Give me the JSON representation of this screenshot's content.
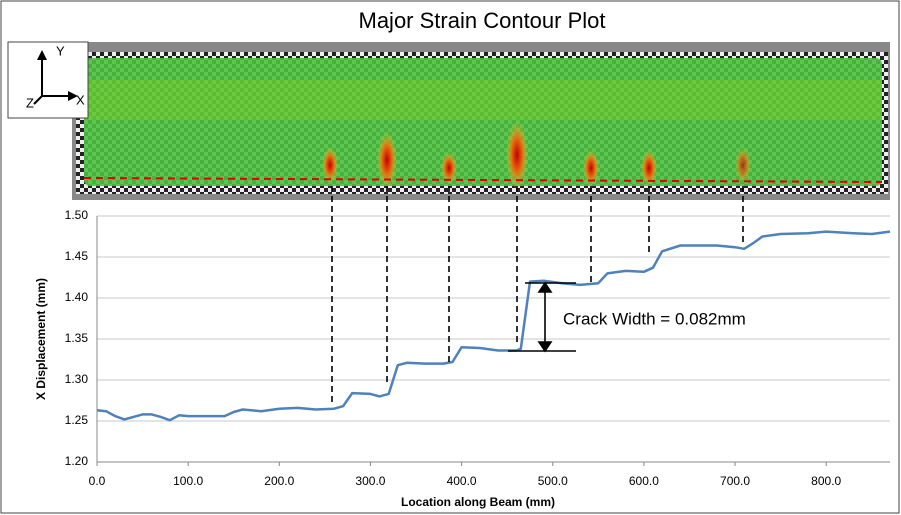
{
  "chart_data": {
    "type": "line",
    "title": "Major Strain Contour Plot",
    "axis_icon_labels": [
      "Y",
      "Z",
      "X"
    ],
    "xlabel": "Location along Beam (mm)",
    "ylabel": "X Displacement (mm)",
    "annotation": "Crack Width = 0.082mm",
    "x": [
      0,
      10,
      20,
      30,
      40,
      50,
      60,
      70,
      80,
      90,
      100,
      120,
      140,
      150,
      160,
      180,
      200,
      220,
      240,
      260,
      270,
      280,
      300,
      310,
      320,
      330,
      340,
      360,
      380,
      390,
      400,
      420,
      440,
      460,
      465,
      475,
      490,
      510,
      530,
      550,
      560,
      580,
      600,
      610,
      620,
      640,
      680,
      700,
      710,
      720,
      730,
      750,
      780,
      800,
      830,
      850,
      870
    ],
    "series": [
      {
        "name": "X Displacement",
        "color": "#4f81bd",
        "values": [
          1.263,
          1.262,
          1.256,
          1.252,
          1.255,
          1.258,
          1.258,
          1.255,
          1.251,
          1.257,
          1.256,
          1.256,
          1.256,
          1.261,
          1.264,
          1.262,
          1.265,
          1.266,
          1.264,
          1.265,
          1.268,
          1.284,
          1.283,
          1.28,
          1.283,
          1.318,
          1.321,
          1.32,
          1.32,
          1.322,
          1.34,
          1.339,
          1.336,
          1.336,
          1.338,
          1.42,
          1.421,
          1.418,
          1.416,
          1.418,
          1.43,
          1.433,
          1.432,
          1.437,
          1.457,
          1.464,
          1.464,
          1.462,
          1.46,
          1.467,
          1.475,
          1.478,
          1.479,
          1.481,
          1.479,
          1.478,
          1.481
        ]
      }
    ],
    "xlim": [
      0,
      870
    ],
    "xticks": [
      {
        "value": 0,
        "label": "0.0"
      },
      {
        "value": 100,
        "label": "100.0"
      },
      {
        "value": 200,
        "label": "200.0"
      },
      {
        "value": 300,
        "label": "300.0"
      },
      {
        "value": 400,
        "label": "400.0"
      },
      {
        "value": 500,
        "label": "500.0"
      },
      {
        "value": 600,
        "label": "600.0"
      },
      {
        "value": 700,
        "label": "700.0"
      },
      {
        "value": 800,
        "label": "800.0"
      }
    ],
    "ylim": [
      1.2,
      1.5
    ],
    "yticks": [
      {
        "value": 1.2,
        "label": "1.20"
      },
      {
        "value": 1.25,
        "label": "1.25"
      },
      {
        "value": 1.3,
        "label": "1.30"
      },
      {
        "value": 1.35,
        "label": "1.35"
      },
      {
        "value": 1.4,
        "label": "1.40"
      },
      {
        "value": 1.45,
        "label": "1.45"
      },
      {
        "value": 1.5,
        "label": "1.50"
      }
    ],
    "grid": true
  }
}
